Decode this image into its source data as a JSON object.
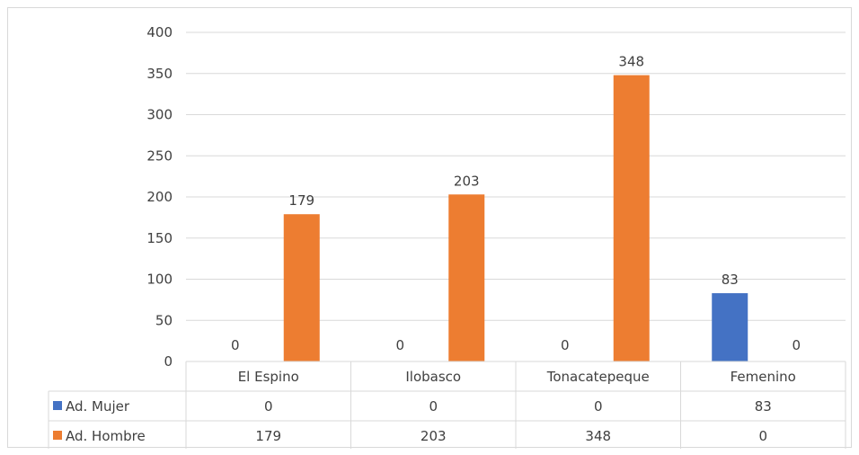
{
  "chart_data": {
    "type": "bar",
    "categories": [
      "El Espino",
      "Ilobasco",
      "Tonacatepeque",
      "Femenino"
    ],
    "series": [
      {
        "name": "Ad. Mujer",
        "values": [
          0,
          0,
          0,
          83
        ],
        "color": "#4472c4"
      },
      {
        "name": "Ad. Hombre",
        "values": [
          179,
          203,
          348,
          0
        ],
        "color": "#ed7d31"
      }
    ],
    "ylim": [
      0,
      400
    ],
    "yticks": [
      0,
      50,
      100,
      150,
      200,
      250,
      300,
      350,
      400
    ],
    "grid": true,
    "legend": "data-table-below",
    "data_labels": true
  },
  "colors": {
    "gridline": "#d9d9d9",
    "text": "#404040"
  }
}
